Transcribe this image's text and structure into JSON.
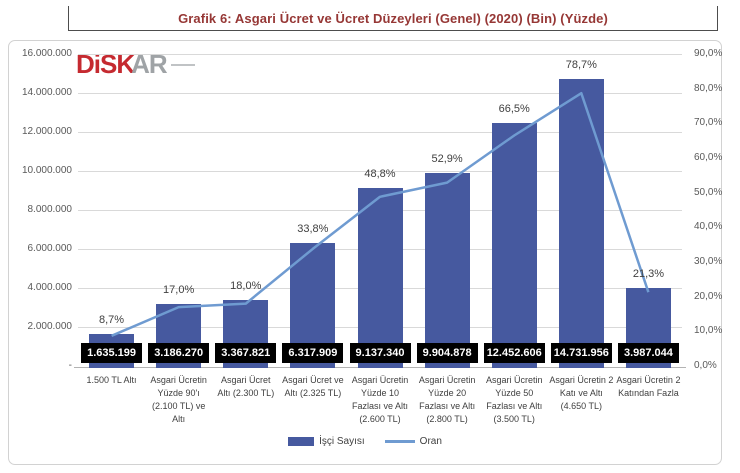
{
  "title": "Grafik 6: Asgari Ücret ve Ücret Düzeyleri (Genel) (2020) (Bin) (Yüzde)",
  "logo": {
    "part1": "DiSK",
    "part2": "AR"
  },
  "colors": {
    "title_red": "#963735",
    "bar_blue": "#46599f",
    "line_blue": "#6f9bd1",
    "logo_red": "#c52a30",
    "logo_gray": "#9fa3a6",
    "gridline": "#d9d9d9",
    "axis_text": "#595959",
    "label_text": "#404040",
    "value_box_bg": "#000000",
    "value_box_text": "#ffffff"
  },
  "chart_data": {
    "type": "bar",
    "subtype": "combo-bar-line",
    "title": "Grafik 6: Asgari Ücret ve Ücret Düzeyleri (Genel) (2020) (Bin) (Yüzde)",
    "grid": true,
    "legend_position": "bottom",
    "categories": [
      "1.500 TL Altı",
      "Asgari Ücretin Yüzde 90'ı (2.100 TL) ve Altı",
      "Asgari Ücret Altı (2.300 TL)",
      "Asgari Ücret ve Altı (2.325 TL)",
      "Asgari Ücretin Yüzde 10 Fazlası ve Altı (2.600 TL)",
      "Asgari Ücretin Yüzde 20 Fazlası ve Altı (2.800 TL)",
      "Asgari Ücretin Yüzde 50 Fazlası ve Altı (3.500 TL)",
      "Asgari Ücretin 2 Katı ve Altı (4.650 TL)",
      "Asgari Ücretin 2 Katından Fazla"
    ],
    "category_lines": [
      [
        "1.500 TL Altı"
      ],
      [
        "Asgari Ücretin",
        "Yüzde 90'ı",
        "(2.100 TL) ve",
        "Altı"
      ],
      [
        "Asgari Ücret",
        "Altı (2.300 TL)"
      ],
      [
        "Asgari Ücret ve",
        "Altı (2.325 TL)"
      ],
      [
        "Asgari Ücretin",
        "Yüzde 10",
        "Fazlası ve Altı",
        "(2.600 TL)"
      ],
      [
        "Asgari Ücretin",
        "Yüzde 20",
        "Fazlası ve Altı",
        "(2.800 TL)"
      ],
      [
        "Asgari Ücretin",
        "Yüzde 50",
        "Fazlası ve Altı",
        "(3.500 TL)"
      ],
      [
        "Asgari Ücretin 2",
        "Katı ve Altı",
        "(4.650 TL)"
      ],
      [
        "Asgari Ücretin 2",
        "Katından Fazla"
      ]
    ],
    "series": [
      {
        "name": "İşçi Sayısı",
        "type": "bar",
        "values": [
          1635199,
          3186270,
          3367821,
          6317909,
          9137340,
          9904878,
          12452606,
          14731956,
          3987044
        ],
        "labels": [
          "1.635.199",
          "3.186.270",
          "3.367.821",
          "6.317.909",
          "9.137.340",
          "9.904.878",
          "12.452.606",
          "14.731.956",
          "3.987.044"
        ],
        "color": "#46599f"
      },
      {
        "name": "Oran",
        "type": "line",
        "values": [
          8.7,
          17.0,
          18.0,
          33.8,
          48.8,
          52.9,
          66.5,
          78.7,
          21.3
        ],
        "labels": [
          "8,7%",
          "17,0%",
          "18,0%",
          "33,8%",
          "48,8%",
          "52,9%",
          "66,5%",
          "78,7%",
          "21,3%"
        ],
        "color": "#6f9bd1"
      }
    ],
    "y_left": {
      "min": 0,
      "max": 16000000,
      "ticks": [
        "16.000.000",
        "14.000.000",
        "12.000.000",
        "10.000.000",
        "8.000.000",
        "6.000.000",
        "4.000.000",
        "2.000.000",
        "-"
      ]
    },
    "y_right": {
      "min": 0,
      "max": 90,
      "ticks": [
        "90,0%",
        "80,0%",
        "70,0%",
        "60,0%",
        "50,0%",
        "40,0%",
        "30,0%",
        "20,0%",
        "10,0%",
        "0,0%"
      ]
    }
  },
  "legend": {
    "bar_label": "İşçi Sayısı",
    "line_label": "Oran"
  }
}
